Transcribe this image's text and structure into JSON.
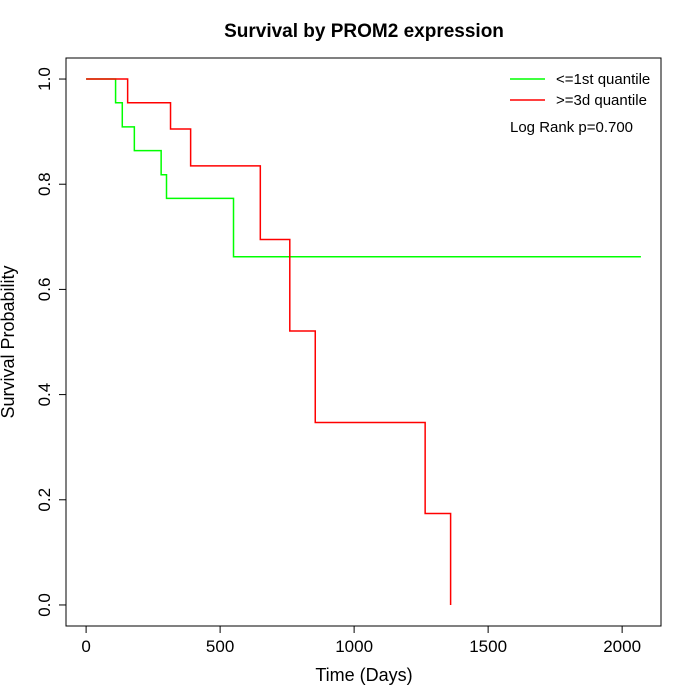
{
  "chart_data": {
    "type": "line",
    "title": "Survival by PROM2 expression",
    "xlabel": "Time (Days)",
    "ylabel": "Survival Probability",
    "xlim": [
      -75,
      2145
    ],
    "ylim": [
      -0.04,
      1.04
    ],
    "x_ticks": [
      0,
      500,
      1000,
      1500,
      2000
    ],
    "y_ticks": [
      0.0,
      0.2,
      0.4,
      0.6,
      0.8,
      1.0
    ],
    "x_tick_labels": [
      "0",
      "500",
      "1000",
      "1500",
      "2000"
    ],
    "y_tick_labels": [
      "0.0",
      "0.2",
      "0.4",
      "0.6",
      "0.8",
      "1.0"
    ],
    "grid": false,
    "legend_position": "top-right",
    "annotation": "Log Rank p=0.700",
    "series": [
      {
        "name": "<=1st quantile",
        "color": "#00ff00",
        "step": true,
        "x": [
          0,
          110,
          135,
          180,
          280,
          300,
          550,
          2070
        ],
        "y": [
          1.0,
          0.955,
          0.909,
          0.864,
          0.818,
          0.773,
          0.662,
          0.662
        ]
      },
      {
        "name": ">=3d quantile",
        "color": "#ff0000",
        "step": true,
        "x": [
          0,
          155,
          315,
          390,
          650,
          760,
          855,
          1265,
          1360,
          1360
        ],
        "y": [
          1.0,
          0.955,
          0.905,
          0.835,
          0.695,
          0.521,
          0.347,
          0.174,
          0.174,
          0.0
        ]
      }
    ]
  }
}
